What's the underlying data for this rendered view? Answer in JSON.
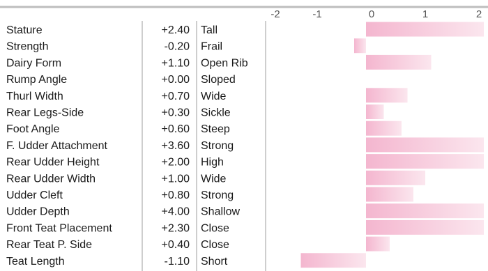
{
  "chart_data": {
    "type": "table",
    "x_ticks": [
      "-2",
      "-1",
      "0",
      "1",
      "2"
    ],
    "xlim": [
      -2,
      2
    ],
    "bar_color": "#f4b6cf",
    "bar_color_light": "#fbe6ee",
    "rows": [
      {
        "trait": "Stature",
        "value": 2.4,
        "value_label": "+2.40",
        "descriptor": "Tall"
      },
      {
        "trait": "Strength",
        "value": -0.2,
        "value_label": "-0.20",
        "descriptor": "Frail"
      },
      {
        "trait": "Dairy Form",
        "value": 1.1,
        "value_label": "+1.10",
        "descriptor": "Open Rib"
      },
      {
        "trait": "Rump Angle",
        "value": 0.0,
        "value_label": "+0.00",
        "descriptor": "Sloped"
      },
      {
        "trait": "Thurl Width",
        "value": 0.7,
        "value_label": "+0.70",
        "descriptor": "Wide"
      },
      {
        "trait": "Rear Legs-Side",
        "value": 0.3,
        "value_label": "+0.30",
        "descriptor": "Sickle"
      },
      {
        "trait": "Foot Angle",
        "value": 0.6,
        "value_label": "+0.60",
        "descriptor": "Steep"
      },
      {
        "trait": "F. Udder Attachment",
        "value": 3.6,
        "value_label": "+3.60",
        "descriptor": "Strong"
      },
      {
        "trait": "Rear Udder Height",
        "value": 2.0,
        "value_label": "+2.00",
        "descriptor": "High"
      },
      {
        "trait": "Rear Udder Width",
        "value": 1.0,
        "value_label": "+1.00",
        "descriptor": "Wide"
      },
      {
        "trait": "Udder Cleft",
        "value": 0.8,
        "value_label": "+0.80",
        "descriptor": "Strong"
      },
      {
        "trait": "Udder Depth",
        "value": 4.0,
        "value_label": "+4.00",
        "descriptor": "Shallow"
      },
      {
        "trait": "Front Teat Placement",
        "value": 2.3,
        "value_label": "+2.30",
        "descriptor": "Close"
      },
      {
        "trait": "Rear Teat P. Side",
        "value": 0.4,
        "value_label": "+0.40",
        "descriptor": "Close"
      },
      {
        "trait": "Teat Length",
        "value": -1.1,
        "value_label": "-1.10",
        "descriptor": "Short"
      }
    ]
  }
}
